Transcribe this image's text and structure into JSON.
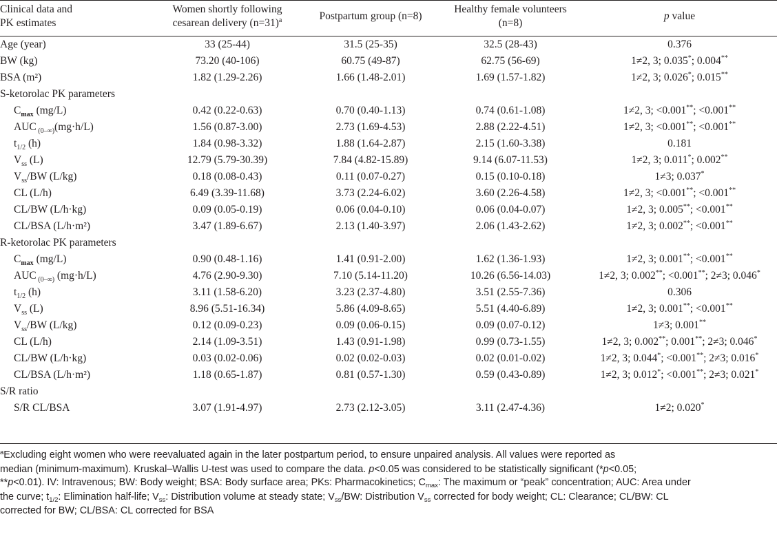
{
  "header": {
    "col0": [
      "Clinical data and",
      "PK estimates"
    ],
    "col1": [
      "Women shortly following",
      "cesarean delivery (n=31)"
    ],
    "col1_sup": "a",
    "col2": "Postpartum group (n=8)",
    "col3": [
      "Healthy female volunteers",
      "(n=8)"
    ],
    "col4_italic": "p",
    "col4_rest": " value"
  },
  "rows": [
    {
      "label": "Age (year)",
      "sub": "",
      "after": "",
      "v1": "33 (25-44)",
      "v2": "31.5 (25-35)",
      "v3": "32.5 (28-43)",
      "p": [
        [
          "0.376",
          ""
        ]
      ]
    },
    {
      "label": "BW (kg)",
      "sub": "",
      "after": "",
      "v1": "73.20 (40-106)",
      "v2": "60.75 (49-87)",
      "v3": "62.75 (56-69)",
      "p": [
        [
          "1≠2, 3; 0.035",
          "*"
        ],
        [
          "; 0.004",
          "**"
        ]
      ]
    },
    {
      "label": "BSA (m²)",
      "sub": "",
      "after": "",
      "v1": "1.82 (1.29-2.26)",
      "v2": "1.66 (1.48-2.01)",
      "v3": "1.69 (1.57-1.82)",
      "p": [
        [
          "1≠2, 3; 0.026",
          "*"
        ],
        [
          "; 0.015",
          "**"
        ]
      ]
    },
    {
      "section": "S-ketorolac PK parameters"
    },
    {
      "label": "C",
      "sub": "max",
      "subbold": true,
      "after": " (mg/L)",
      "v1": "0.42 (0.22-0.63)",
      "v2": "0.70 (0.40-1.13)",
      "v3": "0.74 (0.61-1.08)",
      "p": [
        [
          "1≠2, 3; <0.001",
          "**"
        ],
        [
          "; <0.001",
          "**"
        ]
      ]
    },
    {
      "label": "AUC",
      "sub": " (0–∞)",
      "after": "(mg·h/L)",
      "v1": "1.56 (0.87-3.00)",
      "v2": "2.73 (1.69-4.53)",
      "v3": "2.88 (2.22-4.51)",
      "p": [
        [
          "1≠2, 3; <0.001",
          "**"
        ],
        [
          "; <0.001",
          "**"
        ]
      ]
    },
    {
      "label": "t",
      "sub": "1/2",
      "after": " (h)",
      "v1": "1.84 (0.98-3.32)",
      "v2": "1.88 (1.64-2.87)",
      "v3": "2.15 (1.60-3.38)",
      "p": [
        [
          "0.181",
          ""
        ]
      ]
    },
    {
      "label": "V",
      "sub": "ss",
      "after": " (L)",
      "v1": "12.79 (5.79-30.39)",
      "v2": "7.84 (4.82-15.89)",
      "v3": "9.14 (6.07-11.53)",
      "p": [
        [
          "1≠2, 3; 0.011",
          "*"
        ],
        [
          "; 0.002",
          "**"
        ]
      ]
    },
    {
      "label": "V",
      "sub": "ss",
      "after": "/BW (L/kg)",
      "v1": "0.18 (0.08-0.43)",
      "v2": "0.11 (0.07-0.27)",
      "v3": "0.15 (0.10-0.18)",
      "p": [
        [
          "1≠3; 0.037",
          "*"
        ]
      ]
    },
    {
      "label": "CL (L/h)",
      "sub": "",
      "after": "",
      "v1": "6.49 (3.39-11.68)",
      "v2": "3.73 (2.24-6.02)",
      "v3": "3.60 (2.26-4.58)",
      "p": [
        [
          "1≠2, 3; <0.001",
          "**"
        ],
        [
          "; <0.001",
          "**"
        ]
      ]
    },
    {
      "label": "CL/BW (L/h·kg)",
      "sub": "",
      "after": "",
      "v1": "0.09 (0.05-0.19)",
      "v2": "0.06 (0.04-0.10)",
      "v3": "0.06 (0.04-0.07)",
      "p": [
        [
          "1≠2, 3; 0.005",
          "**"
        ],
        [
          "; <0.001",
          "**"
        ]
      ]
    },
    {
      "label": "CL/BSA (L/h·m²)",
      "sub": "",
      "after": "",
      "v1": "3.47 (1.89-6.67)",
      "v2": "2.13 (1.40-3.97)",
      "v3": "2.06 (1.43-2.62)",
      "p": [
        [
          "1≠2, 3; 0.002",
          "**"
        ],
        [
          "; <0.001",
          "**"
        ]
      ]
    },
    {
      "section": "R-ketorolac PK parameters"
    },
    {
      "label": "C",
      "sub": "max",
      "subbold": true,
      "after": " (mg/L)",
      "v1": "0.90 (0.48-1.16)",
      "v2": "1.41 (0.91-2.00)",
      "v3": "1.62 (1.36-1.93)",
      "p": [
        [
          "1≠2, 3; 0.001",
          "**"
        ],
        [
          "; <0.001",
          "**"
        ]
      ]
    },
    {
      "label": "AUC",
      "sub": " (0–∞)",
      "after": " (mg·h/L)",
      "v1": "4.76 (2.90-9.30)",
      "v2": "7.10 (5.14-11.20)",
      "v3": "10.26 (6.56-14.03)",
      "p": [
        [
          "1≠2, 3; 0.002",
          "**"
        ],
        [
          "; <0.001",
          "**"
        ],
        [
          "; 2≠3; 0.046",
          "*"
        ]
      ]
    },
    {
      "label": "t",
      "sub": "1/2",
      "after": " (h)",
      "v1": "3.11 (1.58-6.20)",
      "v2": "3.23 (2.37-4.80)",
      "v3": "3.51 (2.55-7.36)",
      "p": [
        [
          "0.306",
          ""
        ]
      ]
    },
    {
      "label": "V",
      "sub": "ss",
      "after": " (L)",
      "v1": "8.96 (5.51-16.34)",
      "v2": "5.86 (4.09-8.65)",
      "v3": "5.51 (4.40-6.89)",
      "p": [
        [
          "1≠2, 3; 0.001",
          "**"
        ],
        [
          "; <0.001",
          "**"
        ]
      ]
    },
    {
      "label": "V",
      "sub": "ss",
      "after": "/BW (L/kg)",
      "v1": "0.12 (0.09-0.23)",
      "v2": "0.09 (0.06-0.15)",
      "v3": "0.09 (0.07-0.12)",
      "p": [
        [
          "1≠3; 0.001",
          "**"
        ]
      ]
    },
    {
      "label": "CL (L/h)",
      "sub": "",
      "after": "",
      "v1": "2.14 (1.09-3.51)",
      "v2": "1.43 (0.91-1.98)",
      "v3": "0.99 (0.73-1.55)",
      "p": [
        [
          "1≠2, 3; 0.002",
          "**"
        ],
        [
          "; 0.001",
          "**"
        ],
        [
          "; 2≠3; 0.046",
          "*"
        ]
      ]
    },
    {
      "label": "CL/BW (L/h·kg)",
      "sub": "",
      "after": "",
      "v1": "0.03 (0.02-0.06)",
      "v2": "0.02 (0.02-0.03)",
      "v3": "0.02 (0.01-0.02)",
      "p": [
        [
          "1≠2, 3; 0.044",
          "*"
        ],
        [
          "; <0.001",
          "**"
        ],
        [
          "; 2≠3; 0.016",
          "*"
        ]
      ]
    },
    {
      "label": "CL/BSA (L/h·m²)",
      "sub": "",
      "after": "",
      "v1": "1.18 (0.65-1.87)",
      "v2": "0.81 (0.57-1.30)",
      "v3": "0.59 (0.43-0.89)",
      "p": [
        [
          "1≠2, 3; 0.012",
          "*"
        ],
        [
          "; <0.001",
          "**"
        ],
        [
          "; 2≠3; 0.021",
          "*"
        ]
      ]
    },
    {
      "section": "S/R ratio"
    },
    {
      "label": "S/R CL/BSA",
      "sub": "",
      "after": "",
      "v1": "3.07 (1.91-4.97)",
      "v2": "2.73 (2.12-3.05)",
      "v3": "3.11 (2.47-4.36)",
      "p": [
        [
          "1≠2; 0.020",
          "*"
        ]
      ]
    }
  ],
  "footnote": {
    "line1_sup": "a",
    "line1": "Excluding eight women who were reevaluated again in the later postpartum period, to ensure unpaired analysis. All values were reported as",
    "line2a": "median (minimum-maximum). Kruskal–Wallis U-test was used to compare the data. ",
    "line2_p1": "p",
    "line2b": "<0.05 was considered to be statistically significant (*",
    "line2_p2": "p",
    "line2c": "<0.05;",
    "line3_stars": "**",
    "line3_p": "p",
    "line3a": "<0.01). IV: Intravenous; BW: Body weight; BSA: Body surface area; PKs: Pharmacokinetics; C",
    "line3_sub": "max",
    "line3b": ": The maximum or “peak” concentration; AUC: Area under",
    "line4a": "the curve; t",
    "line4_sub": "1/2",
    "line4b": ": Elimination half-life; V",
    "line4_sub2": "ss",
    "line4c": ": Distribution volume at steady state; V",
    "line4_sub3": "ss",
    "line4d": "/BW: Distribution V",
    "line4_sub4": "ss",
    "line4e": " corrected for body weight; CL: Clearance; CL/BW: CL",
    "line5": "corrected for BW; CL/BSA: CL corrected for BSA"
  }
}
